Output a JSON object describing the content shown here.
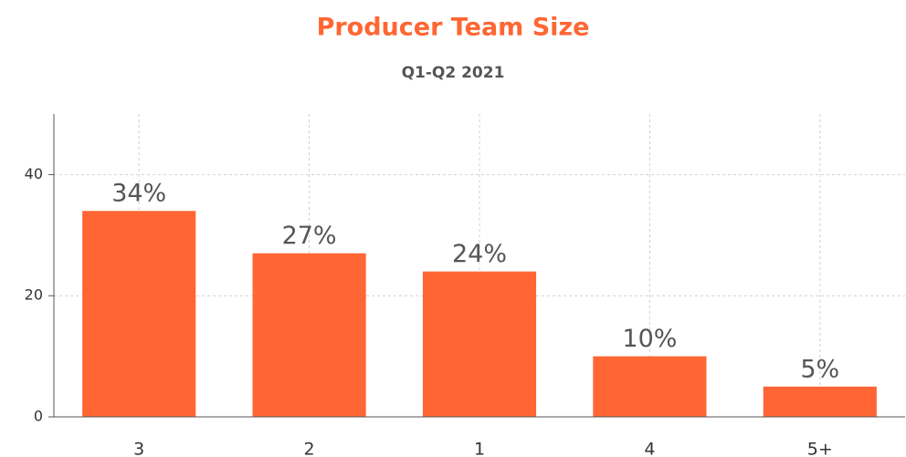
{
  "chart_data": {
    "type": "bar",
    "title": "Producer Team Size",
    "subtitle": "Q1-Q2 2021",
    "categories": [
      "3",
      "2",
      "1",
      "4",
      "5+"
    ],
    "values": [
      34,
      27,
      24,
      10,
      5
    ],
    "value_labels": [
      "34%",
      "27%",
      "24%",
      "10%",
      "5%"
    ],
    "color": "#ff6633",
    "ylim": [
      0,
      50
    ],
    "yticks": [
      0,
      20,
      40
    ],
    "grid": true
  }
}
